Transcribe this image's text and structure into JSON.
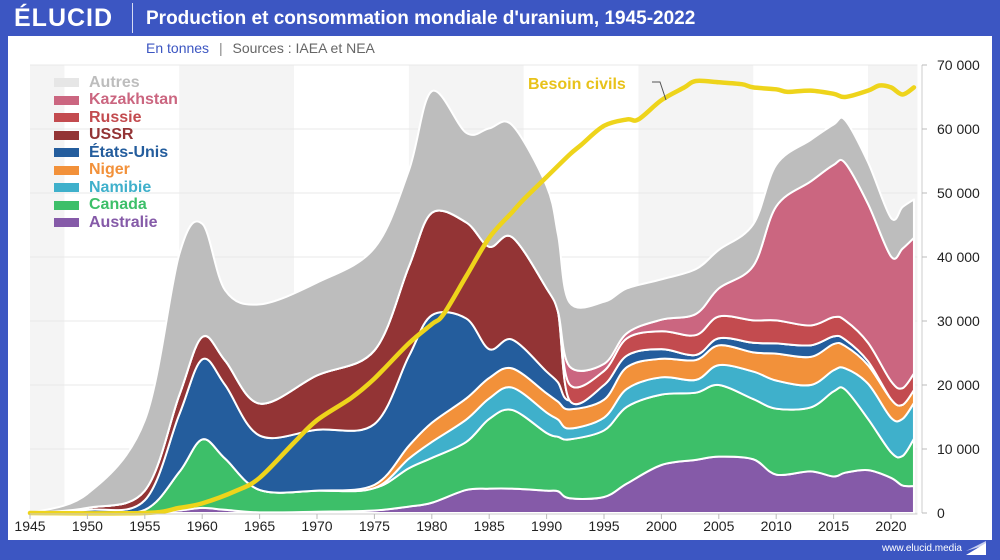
{
  "header": {
    "logo": "ÉLUCID",
    "title": "Production et consommation mondiale d'uranium, 1945-2022",
    "unit": "En tonnes",
    "separator": "|",
    "sources": "Sources : IAEA et NEA"
  },
  "footer": {
    "url": "www.elucid.media"
  },
  "colors": {
    "brand": "#3c56c2",
    "Autres": "#bdbdbd",
    "Kazakhstan": "#cb6680",
    "Russie": "#c34b4f",
    "USSR": "#933435",
    "États-Unis": "#245d9d",
    "Niger": "#f2913a",
    "Namibie": "#3fb0cb",
    "Canada": "#3dbf69",
    "Australie": "#855aa8",
    "Besoin civils": "#eed41b"
  },
  "chart_data": {
    "type": "area",
    "stacked": true,
    "title": "Production et consommation mondiale d'uranium, 1945-2022",
    "subtitle": "En tonnes | Sources : IAEA et NEA",
    "xlabel": "",
    "ylabel": "",
    "xlim": [
      1945,
      2022
    ],
    "ylim": [
      0,
      70000
    ],
    "x_ticks": [
      "1945",
      "1950",
      "1955",
      "1960",
      "1965",
      "1970",
      "1975",
      "1980",
      "1985",
      "1990",
      "1995",
      "2000",
      "2005",
      "2010",
      "2015",
      "2020"
    ],
    "y_ticks": [
      "0",
      "10 000",
      "20 000",
      "30 000",
      "40 000",
      "50 000",
      "60 000",
      "70 000"
    ],
    "y_axis_position": "right",
    "legend_position": "top-left",
    "legend": [
      "Autres",
      "Kazakhstan",
      "Russie",
      "USSR",
      "États-Unis",
      "Niger",
      "Namibie",
      "Canada",
      "Australie"
    ],
    "x": [
      1945,
      1950,
      1955,
      1958,
      1960,
      1962,
      1965,
      1970,
      1975,
      1978,
      1980,
      1983,
      1985,
      1987,
      1990,
      1991,
      1992,
      1995,
      1997,
      2000,
      2003,
      2005,
      2008,
      2010,
      2013,
      2015,
      2016,
      2018,
      2020,
      2021,
      2022
    ],
    "series": [
      {
        "name": "Australie",
        "values": [
          0,
          0,
          0,
          400,
          800,
          500,
          100,
          200,
          400,
          1000,
          1600,
          3600,
          3800,
          3800,
          3500,
          3400,
          2300,
          2500,
          4600,
          7500,
          8300,
          8800,
          8400,
          6000,
          6500,
          5700,
          6300,
          6700,
          5500,
          4300,
          4200
        ]
      },
      {
        "name": "Canada",
        "values": [
          0,
          0,
          500,
          6000,
          10700,
          8000,
          3500,
          3300,
          3500,
          6000,
          7000,
          7500,
          10900,
          12300,
          9000,
          8500,
          9200,
          10400,
          12000,
          11000,
          10500,
          11200,
          9400,
          10300,
          10000,
          13300,
          13000,
          8000,
          4000,
          4600,
          7400
        ]
      },
      {
        "name": "Namibie",
        "values": [
          0,
          0,
          0,
          0,
          0,
          0,
          0,
          0,
          0,
          1500,
          2500,
          3500,
          3200,
          3500,
          3200,
          2700,
          1700,
          2000,
          2800,
          2700,
          2000,
          3100,
          4300,
          4400,
          3500,
          3300,
          3300,
          5500,
          5400,
          5800,
          5600
        ]
      },
      {
        "name": "Niger",
        "values": [
          0,
          0,
          0,
          0,
          0,
          0,
          0,
          0,
          500,
          2000,
          3000,
          3300,
          3200,
          3000,
          3000,
          2800,
          3000,
          2800,
          3400,
          2900,
          3100,
          3100,
          3000,
          4200,
          4400,
          4100,
          3500,
          2900,
          2900,
          2200,
          2000
        ]
      },
      {
        "name": "États-Unis",
        "values": [
          0,
          500,
          1500,
          9000,
          12500,
          11500,
          8500,
          9500,
          9500,
          14000,
          16800,
          12500,
          4500,
          4500,
          3400,
          3000,
          1400,
          2300,
          1800,
          1500,
          800,
          1100,
          1500,
          1600,
          1800,
          1200,
          1000,
          600,
          0,
          0,
          0
        ]
      },
      {
        "name": "USSR",
        "values": [
          0,
          300,
          1500,
          3000,
          3500,
          3800,
          5000,
          8500,
          11500,
          14000,
          16000,
          15000,
          16000,
          16000,
          13000,
          11000,
          0,
          0,
          0,
          0,
          0,
          0,
          0,
          0,
          0,
          0,
          0,
          0,
          0,
          0,
          0
        ]
      },
      {
        "name": "Russie",
        "values": [
          0,
          0,
          0,
          0,
          0,
          0,
          0,
          0,
          0,
          0,
          0,
          0,
          0,
          0,
          0,
          0,
          2500,
          2200,
          2700,
          2800,
          3100,
          3400,
          3500,
          3600,
          3100,
          3000,
          3000,
          2900,
          2800,
          2600,
          2600
        ]
      },
      {
        "name": "Kazakhstan",
        "values": [
          0,
          0,
          0,
          0,
          0,
          0,
          0,
          0,
          0,
          0,
          0,
          0,
          0,
          0,
          0,
          0,
          2800,
          1100,
          800,
          1800,
          3300,
          4400,
          8500,
          17800,
          22500,
          23800,
          24600,
          21700,
          19500,
          21800,
          21200
        ]
      },
      {
        "name": "Autres",
        "values": [
          0,
          2200,
          11000,
          22000,
          17700,
          11000,
          15500,
          14500,
          16000,
          15000,
          19000,
          14000,
          18500,
          17500,
          16000,
          12000,
          10000,
          9700,
          7000,
          6300,
          7000,
          6000,
          6500,
          6500,
          6500,
          6300,
          6700,
          6500,
          6000,
          6500,
          6000
        ]
      }
    ],
    "line": {
      "name": "Besoin civils",
      "label": "Besoin civils",
      "x": [
        1945,
        1955,
        1958,
        1960,
        1963,
        1965,
        1968,
        1970,
        1973,
        1975,
        1978,
        1980,
        1981,
        1983,
        1985,
        1987,
        1988,
        1990,
        1992,
        1993,
        1995,
        1997,
        1998,
        2000,
        2002,
        2003,
        2005,
        2007,
        2008,
        2010,
        2011,
        2013,
        2015,
        2016,
        2018,
        2019,
        2020,
        2021,
        2022
      ],
      "values": [
        0,
        0,
        800,
        1500,
        3500,
        5500,
        11000,
        14500,
        18000,
        21000,
        26500,
        29500,
        31000,
        37000,
        43000,
        47000,
        49000,
        52500,
        56000,
        57500,
        60500,
        61500,
        61500,
        64500,
        66500,
        67500,
        67300,
        67000,
        66500,
        66200,
        65800,
        66000,
        65500,
        65000,
        66000,
        66800,
        66500,
        65400,
        66500
      ]
    }
  }
}
